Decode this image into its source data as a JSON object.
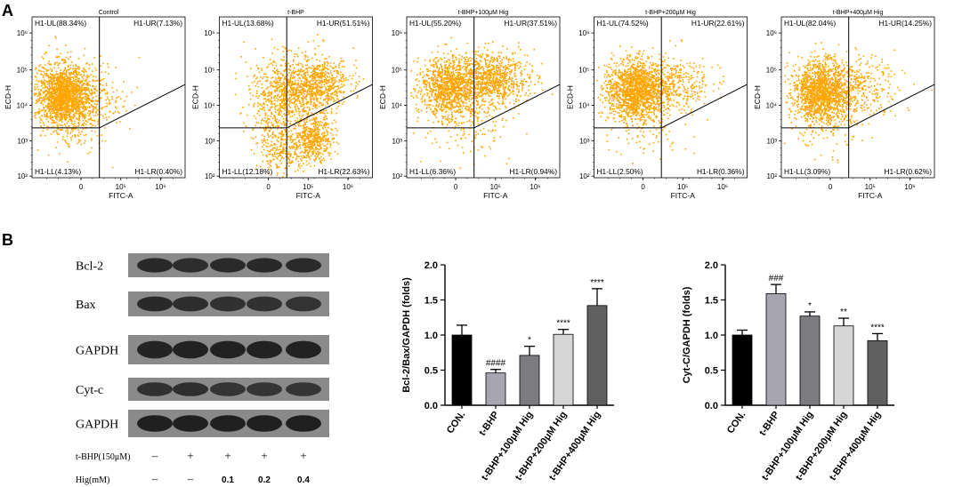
{
  "figure": {
    "panel_a_letter": "A",
    "panel_b_letter": "B"
  },
  "flow": {
    "y_axis_label": "ECD-H",
    "x_axis_label": "FITC-A",
    "y_tick_labels": [
      "10⁶",
      "10⁵",
      "10⁴",
      "10³",
      "10²"
    ],
    "x_tick_labels": [
      "0",
      "10⁵",
      "10⁶"
    ],
    "dot_color": "#FFA500",
    "plots": [
      {
        "title": "Control",
        "UL": "H1-UL(88.34%)",
        "UR": "H1-UR(7.13%)",
        "LL": "H1-LL(4.13%)",
        "LR": "H1-LR(0.40%)"
      },
      {
        "title": "t-BHP",
        "UL": "H1-UL(13.68%)",
        "UR": "H1-UR(51.51%)",
        "LL": "H1-LL(12.18%)",
        "LR": "H1-LR(22.63%)"
      },
      {
        "title": "t-BHP+100μM Hig",
        "UL": "H1-UL(55.20%)",
        "UR": "H1-UR(37.51%)",
        "LL": "H1-LL(6.36%)",
        "LR": "H1-LR(0.94%)"
      },
      {
        "title": "t-BHP+200μM Hig",
        "UL": "H1-UL(74.52%)",
        "UR": "H1-UR(22.61%)",
        "LL": "H1-LL(2.50%)",
        "LR": "H1-LR(0.36%)"
      },
      {
        "title": "t-BHP+400μM Hig",
        "UL": "H1-UL(82.04%)",
        "UR": "H1-UR(14.25%)",
        "LL": "H1-LL(3.09%)",
        "LR": "H1-LR(0.62%)"
      }
    ]
  },
  "blot": {
    "row_labels": [
      "Bcl-2",
      "Bax",
      "GAPDH",
      "Cyt-c",
      "GAPDH"
    ],
    "treatment_rows": [
      {
        "label": "t-BHP(150μM)",
        "values": [
          "–",
          "+",
          "+",
          "+",
          "+"
        ]
      },
      {
        "label": "Hig(mM)",
        "values": [
          "–",
          "–",
          "0.1",
          "0.2",
          "0.4"
        ]
      }
    ]
  },
  "chart_data": [
    {
      "type": "bar",
      "title": "",
      "ylabel": "Bcl-2/Bax/GAPDH (folds)",
      "xlabel": "",
      "ylim": [
        0,
        2.0
      ],
      "yticks": [
        "0.0",
        "0.5",
        "1.0",
        "1.5",
        "2.0"
      ],
      "categories": [
        "CON.",
        "t-BHP",
        "t-BHP+100μM Hig",
        "t-BHP+200μM Hig",
        "t-BHP+400μM Hig"
      ],
      "values": [
        1.0,
        0.46,
        0.71,
        1.01,
        1.42
      ],
      "errors": [
        0.14,
        0.05,
        0.13,
        0.07,
        0.24
      ],
      "annotations": [
        "",
        "####",
        "*",
        "****",
        "****"
      ],
      "colors": [
        "#000000",
        "#a7a5b2",
        "#7c7b80",
        "#d6d6d6",
        "#606060"
      ]
    },
    {
      "type": "bar",
      "title": "",
      "ylabel": "Cyt-C/GAPDH (folds)",
      "xlabel": "",
      "ylim": [
        0,
        2.0
      ],
      "yticks": [
        "0.0",
        "0.5",
        "1.0",
        "1.5",
        "2.0"
      ],
      "categories": [
        "CON.",
        "t-BHP",
        "t-BHP+100μM Hig",
        "t-BHP+200μM Hig",
        "t-BHP+400μM Hig"
      ],
      "values": [
        1.0,
        1.59,
        1.27,
        1.13,
        0.92
      ],
      "errors": [
        0.07,
        0.13,
        0.06,
        0.11,
        0.1
      ],
      "annotations": [
        "",
        "###",
        "*",
        "**",
        "****"
      ],
      "colors": [
        "#000000",
        "#a7a5b2",
        "#7c7b80",
        "#d6d6d6",
        "#606060"
      ]
    }
  ]
}
